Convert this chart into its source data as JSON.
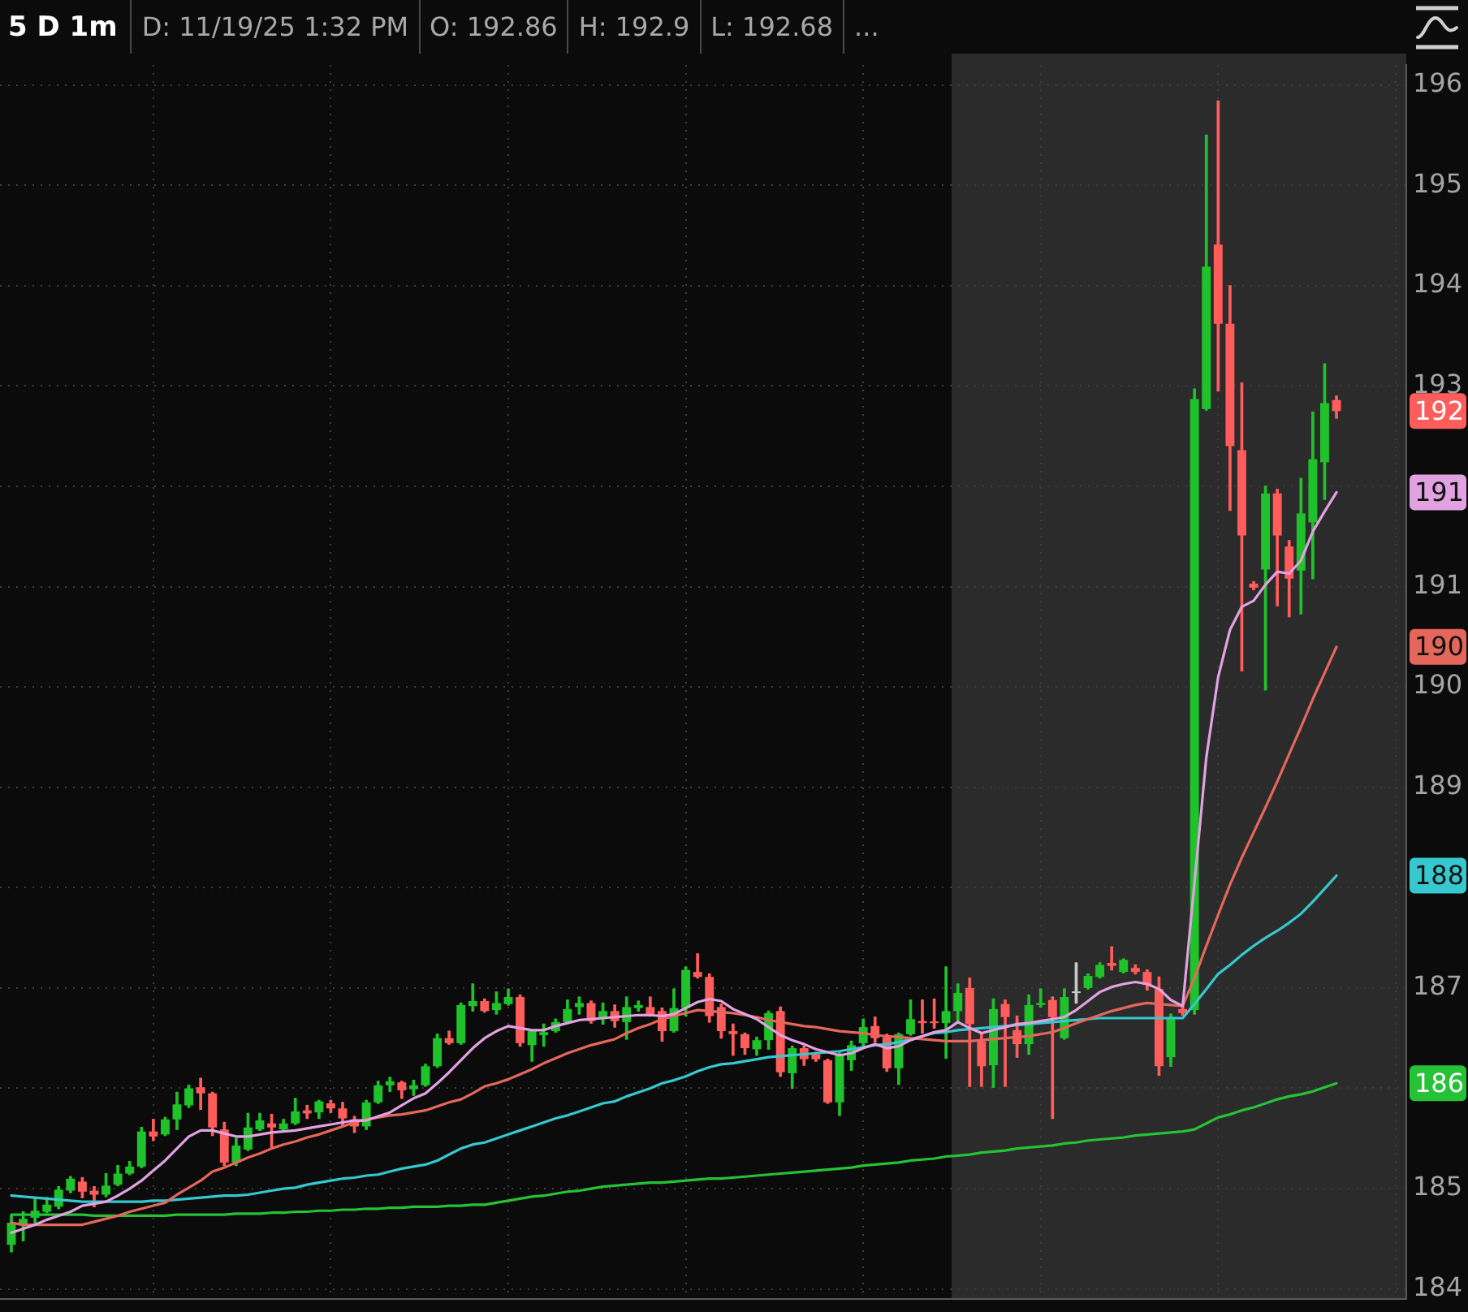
{
  "chart_data": {
    "type": "candlestick",
    "title": "5 D 1m",
    "annotations": [
      "D: 11/19/25 1:32 PM",
      "O: 192.86",
      "H: 192.9",
      "L: 192.68",
      "...",
      "192",
      "191",
      "190",
      "188",
      "186"
    ],
    "categories": [
      null,
      null,
      null,
      null,
      null,
      null,
      null,
      null,
      null,
      null,
      null,
      null,
      null,
      null,
      null,
      null,
      null,
      null,
      null,
      null,
      null,
      null,
      null,
      null,
      null,
      null,
      null,
      null,
      null,
      null,
      null,
      null,
      null,
      null,
      null,
      null,
      null,
      null,
      null,
      null,
      null,
      null,
      null,
      null,
      null,
      null,
      null,
      null,
      null,
      null,
      null,
      null,
      null,
      null,
      null,
      null,
      null,
      null,
      null,
      null,
      null,
      null,
      null,
      null,
      null,
      null,
      null,
      null,
      null,
      null,
      null,
      null,
      null,
      null,
      null,
      null,
      null,
      null,
      null,
      null,
      null,
      null,
      null,
      null,
      null,
      null,
      null,
      null,
      null,
      null,
      null,
      null,
      null,
      null,
      null,
      null,
      null,
      null,
      null,
      null,
      null,
      null,
      null,
      null,
      null,
      null,
      null,
      null,
      null,
      null,
      null,
      null,
      null
    ],
    "ylim": [
      183.9,
      196.2
    ],
    "yticks": [
      184,
      185,
      {
        "value": 186,
        "label": null
      },
      187,
      {
        "value": 188,
        "label": null
      },
      189,
      190,
      191,
      {
        "value": 192,
        "label": null
      },
      193,
      194,
      195,
      196
    ],
    "grid": true,
    "tick_labels": "y",
    "series": [
      {
        "ohlc": [
          [
            184.44,
            184.73,
            184.37,
            184.66
          ],
          [
            184.65,
            184.77,
            184.48,
            184.7
          ],
          [
            184.71,
            184.91,
            184.66,
            184.78
          ],
          [
            184.77,
            184.91,
            184.76,
            184.84
          ],
          [
            184.82,
            185.02,
            184.8,
            184.99
          ],
          [
            184.98,
            185.12,
            184.96,
            185.1
          ],
          [
            185.07,
            185.11,
            184.91,
            184.97
          ],
          [
            184.98,
            185.02,
            184.82,
            184.94
          ],
          [
            184.94,
            185.15,
            184.92,
            185.03
          ],
          [
            185.04,
            185.23,
            185.03,
            185.15
          ],
          [
            185.15,
            185.27,
            185.14,
            185.22
          ],
          [
            185.22,
            185.61,
            185.21,
            185.57
          ],
          [
            185.57,
            185.69,
            185.48,
            185.52
          ],
          [
            185.54,
            185.71,
            185.53,
            185.69
          ],
          [
            185.69,
            185.96,
            185.59,
            185.84
          ],
          [
            185.83,
            186.03,
            185.81,
            186.0
          ],
          [
            186.01,
            186.1,
            185.79,
            185.95
          ],
          [
            185.95,
            185.96,
            185.53,
            185.61
          ],
          [
            185.59,
            185.66,
            185.23,
            185.26
          ],
          [
            185.26,
            185.5,
            185.23,
            185.43
          ],
          [
            185.39,
            185.75,
            185.38,
            185.61
          ],
          [
            185.59,
            185.75,
            185.58,
            185.68
          ],
          [
            185.65,
            185.74,
            185.41,
            185.61
          ],
          [
            185.59,
            185.69,
            185.58,
            185.65
          ],
          [
            185.65,
            185.9,
            185.64,
            185.77
          ],
          [
            185.78,
            185.83,
            185.7,
            185.75
          ],
          [
            185.76,
            185.88,
            185.7,
            185.87
          ],
          [
            185.85,
            185.88,
            185.76,
            185.8
          ],
          [
            185.8,
            185.86,
            185.63,
            185.7
          ],
          [
            185.69,
            185.72,
            185.56,
            185.62
          ],
          [
            185.62,
            185.88,
            185.59,
            185.86
          ],
          [
            185.86,
            186.07,
            185.85,
            186.03
          ],
          [
            186.03,
            186.11,
            185.97,
            186.07
          ],
          [
            186.06,
            186.07,
            185.9,
            185.98
          ],
          [
            185.99,
            186.08,
            185.93,
            186.03
          ],
          [
            186.03,
            186.24,
            186.02,
            186.22
          ],
          [
            186.22,
            186.54,
            186.21,
            186.5
          ],
          [
            186.5,
            186.57,
            186.44,
            186.45
          ],
          [
            186.45,
            186.85,
            186.44,
            186.83
          ],
          [
            186.82,
            187.04,
            186.77,
            186.87
          ],
          [
            186.87,
            186.89,
            186.76,
            186.77
          ],
          [
            186.78,
            186.96,
            186.74,
            186.85
          ],
          [
            186.84,
            186.99,
            186.83,
            186.91
          ],
          [
            186.91,
            186.93,
            186.42,
            186.45
          ],
          [
            186.43,
            186.58,
            186.27,
            186.57
          ],
          [
            186.53,
            186.64,
            186.42,
            186.56
          ],
          [
            186.57,
            186.69,
            186.56,
            186.66
          ],
          [
            186.66,
            186.88,
            186.65,
            186.79
          ],
          [
            186.81,
            186.91,
            186.74,
            186.85
          ],
          [
            186.85,
            186.87,
            186.65,
            186.67
          ],
          [
            186.69,
            186.85,
            186.64,
            186.77
          ],
          [
            186.77,
            186.83,
            186.61,
            186.67
          ],
          [
            186.66,
            186.91,
            186.49,
            186.81
          ],
          [
            186.8,
            186.87,
            186.77,
            186.83
          ],
          [
            186.81,
            186.91,
            186.72,
            186.74
          ],
          [
            186.77,
            186.8,
            186.47,
            186.57
          ],
          [
            186.57,
            186.99,
            186.56,
            186.8
          ],
          [
            186.8,
            187.21,
            186.72,
            187.18
          ],
          [
            187.16,
            187.34,
            187.1,
            187.11
          ],
          [
            187.11,
            187.14,
            186.66,
            186.72
          ],
          [
            186.81,
            186.84,
            186.5,
            186.57
          ],
          [
            186.57,
            186.64,
            186.33,
            186.54
          ],
          [
            186.54,
            186.55,
            186.34,
            186.4
          ],
          [
            186.39,
            186.51,
            186.33,
            186.48
          ],
          [
            186.48,
            186.77,
            186.39,
            186.75
          ],
          [
            186.77,
            186.81,
            186.12,
            186.16
          ],
          [
            186.15,
            186.42,
            186.0,
            186.4
          ],
          [
            186.4,
            186.42,
            186.23,
            186.29
          ],
          [
            186.34,
            186.36,
            186.27,
            186.29
          ],
          [
            186.28,
            186.29,
            185.85,
            185.86
          ],
          [
            185.86,
            186.36,
            185.73,
            186.34
          ],
          [
            186.28,
            186.47,
            186.18,
            186.43
          ],
          [
            186.45,
            186.69,
            186.42,
            186.61
          ],
          [
            186.62,
            186.71,
            186.46,
            186.5
          ],
          [
            186.51,
            186.54,
            186.17,
            186.2
          ],
          [
            186.2,
            186.55,
            186.04,
            186.54
          ],
          [
            186.54,
            186.88,
            186.53,
            186.69
          ],
          [
            186.67,
            186.88,
            186.55,
            186.65
          ],
          [
            186.66,
            186.89,
            186.6,
            186.65
          ],
          [
            186.65,
            187.21,
            186.3,
            186.77
          ],
          [
            186.77,
            187.04,
            186.66,
            186.95
          ],
          [
            187.0,
            187.1,
            186.02,
            186.64
          ],
          [
            186.47,
            186.55,
            186.02,
            186.22
          ],
          [
            186.23,
            186.89,
            186.01,
            186.79
          ],
          [
            186.84,
            186.88,
            186.02,
            186.71
          ],
          [
            186.58,
            186.72,
            186.31,
            186.44
          ],
          [
            186.44,
            186.93,
            186.34,
            186.83
          ],
          [
            186.83,
            186.99,
            186.81,
            186.85
          ],
          [
            186.88,
            186.91,
            185.7,
            186.71
          ],
          [
            186.5,
            186.99,
            186.49,
            186.91
          ],
          [
            186.95,
            187.25,
            186.85,
            186.95
          ],
          [
            187.0,
            187.14,
            186.99,
            187.12
          ],
          [
            187.11,
            187.25,
            187.1,
            187.23
          ],
          [
            187.25,
            187.41,
            187.18,
            187.22
          ],
          [
            187.16,
            187.29,
            187.15,
            187.28
          ],
          [
            187.2,
            187.23,
            187.14,
            187.16
          ],
          [
            187.16,
            187.18,
            186.98,
            187.03
          ],
          [
            186.99,
            187.11,
            186.13,
            186.22
          ],
          [
            186.31,
            186.74,
            186.22,
            186.71
          ],
          [
            186.79,
            186.83,
            186.73,
            186.75
          ],
          [
            186.78,
            192.97,
            186.74,
            192.87
          ],
          [
            192.77,
            195.5,
            192.76,
            194.19
          ],
          [
            194.41,
            195.84,
            192.95,
            193.62
          ],
          [
            193.62,
            194.0,
            191.76,
            192.4
          ],
          [
            192.36,
            193.03,
            190.16,
            191.51
          ],
          [
            191.03,
            191.05,
            190.97,
            190.99
          ],
          [
            191.17,
            192.0,
            189.97,
            191.93
          ],
          [
            191.93,
            191.97,
            190.81,
            191.51
          ],
          [
            191.4,
            191.46,
            190.7,
            191.08
          ],
          [
            191.16,
            192.08,
            190.73,
            191.73
          ],
          [
            191.64,
            192.74,
            191.08,
            192.27
          ],
          [
            192.24,
            193.22,
            191.87,
            192.83
          ],
          [
            192.86,
            192.9,
            192.68,
            192.75
          ]
        ],
        "colors": [
          "#1fc22b",
          "#1fc22b",
          "#1fc22b",
          "#1fc22b",
          "#1fc22b",
          "#1fc22b",
          "#ff5c5c",
          "#ff5c5c",
          "#1fc22b",
          "#1fc22b",
          "#1fc22b",
          "#1fc22b",
          "#ff5c5c",
          "#1fc22b",
          "#1fc22b",
          "#1fc22b",
          "#ff5c5c",
          "#ff5c5c",
          "#ff5c5c",
          "#1fc22b",
          "#1fc22b",
          "#1fc22b",
          "#ff5c5c",
          "#1fc22b",
          "#1fc22b",
          "#ff5c5c",
          "#1fc22b",
          "#ff5c5c",
          "#ff5c5c",
          "#ff5c5c",
          "#1fc22b",
          "#1fc22b",
          "#1fc22b",
          "#ff5c5c",
          "#1fc22b",
          "#1fc22b",
          "#1fc22b",
          "#ff5c5c",
          "#1fc22b",
          "#1fc22b",
          "#ff5c5c",
          "#1fc22b",
          "#1fc22b",
          "#ff5c5c",
          "#1fc22b",
          "#1fc22b",
          "#1fc22b",
          "#1fc22b",
          "#1fc22b",
          "#ff5c5c",
          "#1fc22b",
          "#ff5c5c",
          "#1fc22b",
          "#1fc22b",
          "#ff5c5c",
          "#ff5c5c",
          "#1fc22b",
          "#1fc22b",
          "#ff5c5c",
          "#ff5c5c",
          "#ff5c5c",
          "#ff5c5c",
          "#ff5c5c",
          "#1fc22b",
          "#1fc22b",
          "#ff5c5c",
          "#1fc22b",
          "#ff5c5c",
          "#ff5c5c",
          "#ff5c5c",
          "#1fc22b",
          "#1fc22b",
          "#1fc22b",
          "#ff5c5c",
          "#ff5c5c",
          "#1fc22b",
          "#1fc22b",
          "#ff5c5c",
          "#ff5c5c",
          "#1fc22b",
          "#1fc22b",
          "#ff5c5c",
          "#ff5c5c",
          "#1fc22b",
          "#ff5c5c",
          "#ff5c5c",
          "#1fc22b",
          "#1fc22b",
          "#ff5c5c",
          "#1fc22b",
          "#c8c8c8",
          "#1fc22b",
          "#1fc22b",
          "#ff5c5c",
          "#1fc22b",
          "#ff5c5c",
          "#ff5c5c",
          "#ff5c5c",
          "#1fc22b",
          "#ff5c5c",
          "#1fc22b",
          "#1fc22b",
          "#ff5c5c",
          "#ff5c5c",
          "#ff5c5c",
          "#ff5c5c",
          "#1fc22b",
          "#ff5c5c",
          "#ff5c5c",
          "#1fc22b",
          "#1fc22b",
          "#1fc22b",
          "#ff5c5c"
        ]
      },
      {
        "type": "line",
        "color": "#e2a2e2",
        "values": [
          184.56,
          184.6,
          184.64,
          184.69,
          184.73,
          184.77,
          184.83,
          184.85,
          184.87,
          184.93,
          185.0,
          185.08,
          185.18,
          185.28,
          185.4,
          185.52,
          185.58,
          185.58,
          185.55,
          185.52,
          185.52,
          185.54,
          185.56,
          185.57,
          185.58,
          185.6,
          185.62,
          185.64,
          185.66,
          185.68,
          185.68,
          185.72,
          185.76,
          185.83,
          185.9,
          185.95,
          186.05,
          186.16,
          186.28,
          186.4,
          186.5,
          186.57,
          186.62,
          186.6,
          186.58,
          186.58,
          186.62,
          186.65,
          186.68,
          186.69,
          186.7,
          186.71,
          186.72,
          186.73,
          186.73,
          186.72,
          186.74,
          186.8,
          186.86,
          186.89,
          186.87,
          186.79,
          186.74,
          186.69,
          186.61,
          186.53,
          186.48,
          186.44,
          186.39,
          186.36,
          186.33,
          186.35,
          186.4,
          186.44,
          186.4,
          186.42,
          186.48,
          186.52,
          186.56,
          186.58,
          186.66,
          186.6,
          186.55,
          186.58,
          186.61,
          186.64,
          186.65,
          186.67,
          186.69,
          186.71,
          186.78,
          186.87,
          186.96,
          187.01,
          187.04,
          187.06,
          187.04,
          186.99,
          186.88,
          186.82,
          188.05,
          189.3,
          190.1,
          190.57,
          190.8,
          190.86,
          191.02,
          191.15,
          191.13,
          191.26,
          191.55,
          191.75,
          191.94
        ]
      },
      {
        "type": "line",
        "color": "#e5675c",
        "values": [
          184.66,
          184.64,
          184.64,
          184.64,
          184.64,
          184.64,
          184.64,
          184.67,
          184.7,
          184.73,
          184.77,
          184.8,
          184.83,
          184.86,
          184.94,
          185.01,
          185.08,
          185.17,
          185.21,
          185.26,
          185.31,
          185.35,
          185.4,
          185.44,
          185.47,
          185.51,
          185.54,
          185.58,
          185.62,
          185.66,
          185.69,
          185.71,
          185.73,
          185.74,
          185.76,
          185.78,
          185.82,
          185.86,
          185.89,
          185.95,
          186.02,
          186.05,
          186.09,
          186.14,
          186.19,
          186.25,
          186.3,
          186.35,
          186.39,
          186.43,
          186.46,
          186.49,
          186.55,
          186.6,
          186.64,
          186.69,
          186.72,
          186.75,
          186.78,
          186.77,
          186.76,
          186.75,
          186.73,
          186.71,
          186.68,
          186.66,
          186.64,
          186.62,
          186.61,
          186.59,
          186.57,
          186.56,
          186.55,
          186.53,
          186.52,
          186.51,
          186.5,
          186.49,
          186.48,
          186.47,
          186.47,
          186.47,
          186.48,
          186.49,
          186.5,
          186.51,
          186.52,
          186.54,
          186.56,
          186.6,
          186.65,
          186.69,
          186.73,
          186.77,
          186.8,
          186.83,
          186.85,
          186.84,
          186.83,
          186.82,
          187.1,
          187.42,
          187.73,
          188.03,
          188.3,
          188.55,
          188.8,
          189.06,
          189.33,
          189.6,
          189.88,
          190.14,
          190.4
        ]
      },
      {
        "type": "line",
        "color": "#35c8cf",
        "values": [
          184.93,
          184.92,
          184.91,
          184.9,
          184.89,
          184.88,
          184.87,
          184.87,
          184.87,
          184.87,
          184.87,
          184.87,
          184.88,
          184.88,
          184.89,
          184.9,
          184.91,
          184.92,
          184.93,
          184.93,
          184.94,
          184.96,
          184.98,
          185.0,
          185.01,
          185.04,
          185.06,
          185.08,
          185.1,
          185.11,
          185.13,
          185.14,
          185.17,
          185.2,
          185.22,
          185.24,
          185.28,
          185.34,
          185.4,
          185.44,
          185.46,
          185.5,
          185.54,
          185.58,
          185.62,
          185.66,
          185.7,
          185.73,
          185.77,
          185.81,
          185.85,
          185.87,
          185.92,
          185.96,
          186.0,
          186.05,
          186.08,
          186.12,
          186.17,
          186.21,
          186.24,
          186.25,
          186.27,
          186.29,
          186.31,
          186.32,
          186.33,
          186.34,
          186.35,
          186.36,
          186.37,
          186.39,
          186.41,
          186.43,
          186.44,
          186.46,
          186.49,
          186.52,
          186.55,
          186.56,
          186.58,
          186.59,
          186.6,
          186.61,
          186.62,
          186.63,
          186.64,
          186.65,
          186.66,
          186.67,
          186.68,
          186.69,
          186.7,
          186.7,
          186.7,
          186.7,
          186.7,
          186.7,
          186.7,
          186.7,
          186.84,
          186.99,
          187.14,
          187.23,
          187.33,
          187.42,
          187.5,
          187.57,
          187.65,
          187.74,
          187.86,
          187.99,
          188.12
        ]
      },
      {
        "type": "line",
        "color": "#25c236",
        "values": [
          184.74,
          184.74,
          184.74,
          184.74,
          184.74,
          184.74,
          184.74,
          184.73,
          184.73,
          184.73,
          184.73,
          184.73,
          184.73,
          184.73,
          184.74,
          184.74,
          184.74,
          184.74,
          184.74,
          184.75,
          184.75,
          184.75,
          184.76,
          184.76,
          184.77,
          184.77,
          184.78,
          184.78,
          184.79,
          184.79,
          184.8,
          184.8,
          184.81,
          184.81,
          184.82,
          184.82,
          184.82,
          184.83,
          184.83,
          184.84,
          184.84,
          184.86,
          184.88,
          184.9,
          184.92,
          184.93,
          184.95,
          184.97,
          184.98,
          185.0,
          185.02,
          185.03,
          185.04,
          185.05,
          185.06,
          185.06,
          185.07,
          185.08,
          185.09,
          185.1,
          185.1,
          185.11,
          185.12,
          185.13,
          185.14,
          185.15,
          185.16,
          185.17,
          185.18,
          185.19,
          185.2,
          185.21,
          185.23,
          185.24,
          185.25,
          185.26,
          185.28,
          185.29,
          185.3,
          185.32,
          185.33,
          185.34,
          185.36,
          185.37,
          185.38,
          185.4,
          185.41,
          185.42,
          185.43,
          185.45,
          185.46,
          185.48,
          185.49,
          185.5,
          185.51,
          185.53,
          185.54,
          185.55,
          185.56,
          185.57,
          185.59,
          185.65,
          185.71,
          185.74,
          185.78,
          185.81,
          185.85,
          185.89,
          185.92,
          185.94,
          185.97,
          186.01,
          186.05
        ]
      }
    ]
  }
}
